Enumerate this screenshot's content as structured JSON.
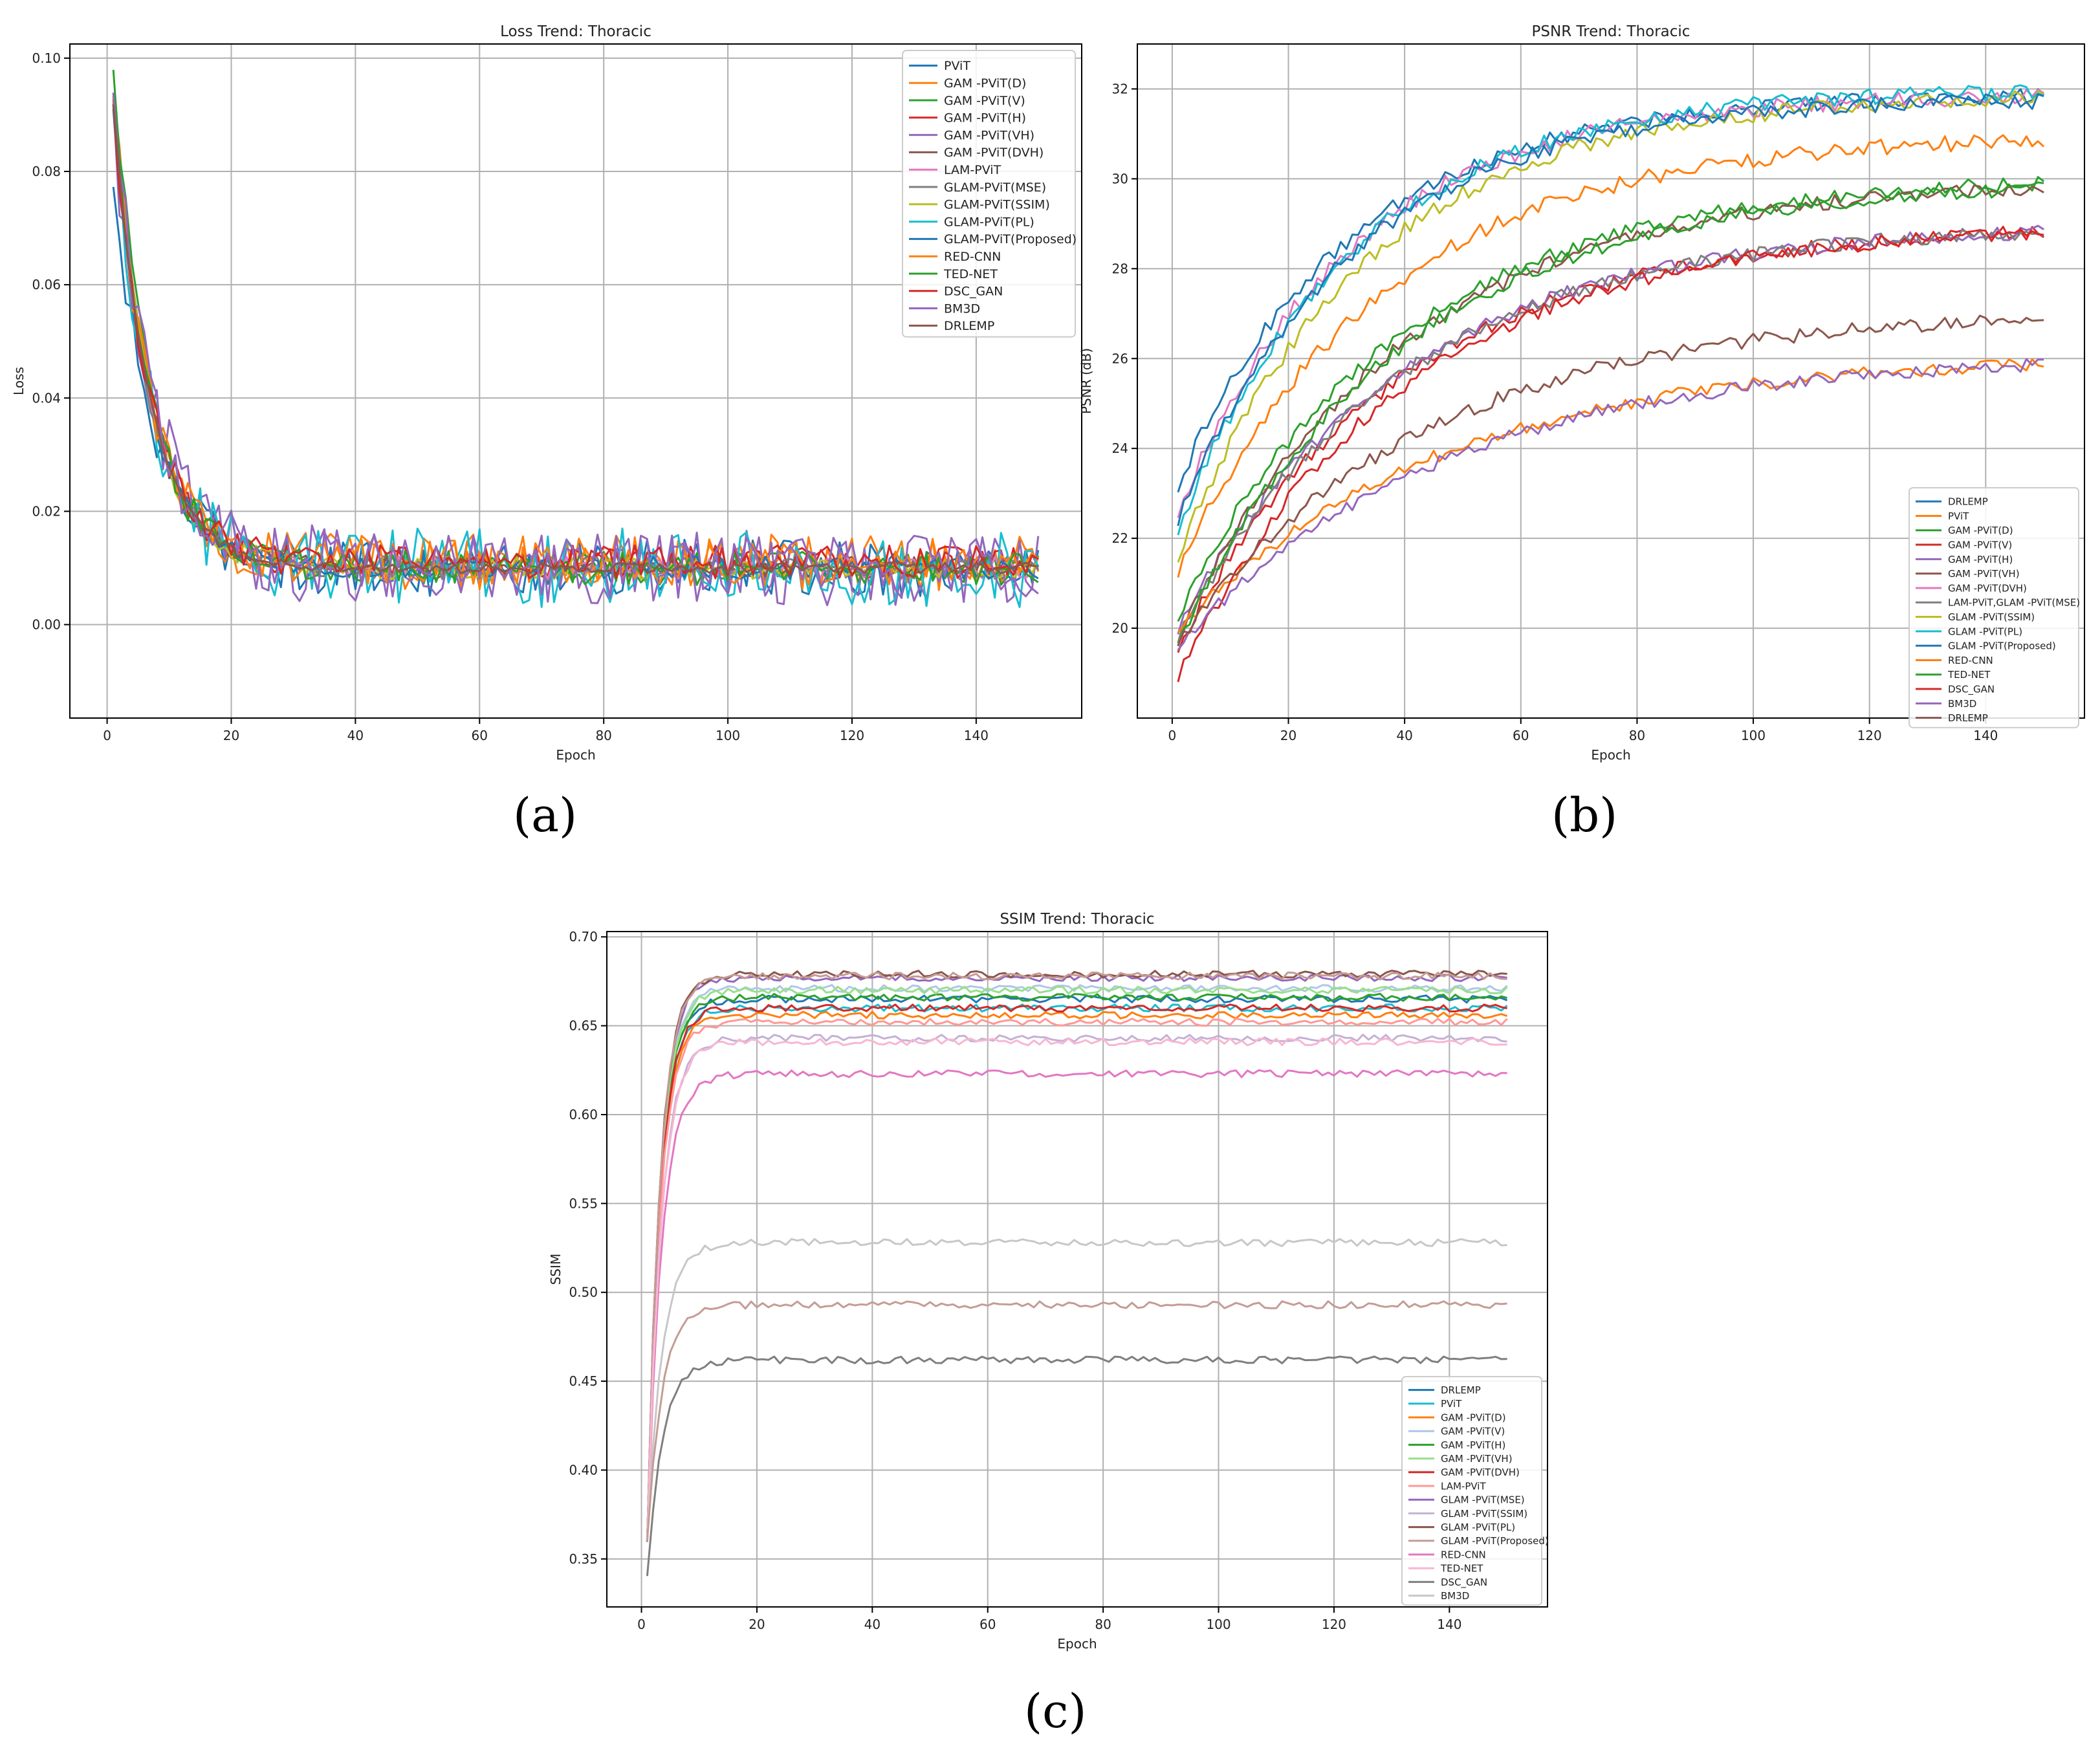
{
  "colors": {
    "c0": "#1f77b4",
    "c1": "#ff7f0e",
    "c2": "#2ca02c",
    "c3": "#d62728",
    "c4": "#9467bd",
    "c5": "#8c564b",
    "c6": "#e377c2",
    "c7": "#7f7f7f",
    "c8": "#bcbd22",
    "c9": "#17becf"
  },
  "panel_labels": [
    "(a)",
    "(b)",
    "(c)"
  ],
  "chart_data": [
    {
      "type": "line",
      "title": "Loss Trend: Thoracic",
      "xlabel": "Epoch",
      "ylabel": "Loss",
      "xlim": [
        -6,
        157
      ],
      "ylim": [
        -0.0165,
        0.1025
      ],
      "xticks": [
        0,
        20,
        40,
        60,
        80,
        100,
        120,
        140
      ],
      "yticks": [
        0.0,
        0.02,
        0.04,
        0.06,
        0.08,
        0.1
      ],
      "ytick_labels": [
        "0.00",
        "0.02",
        "0.04",
        "0.06",
        "0.08",
        "0.10"
      ],
      "grid": true,
      "legend_position": "top-right",
      "x": "epochs 1-150",
      "series": [
        {
          "name": "PViT",
          "color": "c0",
          "start": 0.076,
          "final": 0.01,
          "tau": 6.5,
          "noise": 0.005
        },
        {
          "name": "GAM -PViT(D)",
          "color": "c1",
          "start": 0.092,
          "final": 0.011,
          "tau": 6.0,
          "noise": 0.005
        },
        {
          "name": "GAM -PViT(V)",
          "color": "c2",
          "start": 0.097,
          "final": 0.01,
          "tau": 6.0,
          "noise": 0.003
        },
        {
          "name": "GAM -PViT(H)",
          "color": "c3",
          "start": 0.091,
          "final": 0.011,
          "tau": 6.0,
          "noise": 0.003
        },
        {
          "name": "GAM -PViT(VH)",
          "color": "c4",
          "start": 0.09,
          "final": 0.01,
          "tau": 6.5,
          "noise": 0.007
        },
        {
          "name": "GAM -PViT(DVH)",
          "color": "c5",
          "start": 0.092,
          "final": 0.01,
          "tau": 6.0,
          "noise": 0.002
        },
        {
          "name": "LAM-PViT",
          "color": "c6",
          "start": 0.091,
          "final": 0.01,
          "tau": 6.0,
          "noise": 0.002
        },
        {
          "name": "GLAM-PViT(MSE)",
          "color": "c7",
          "start": 0.09,
          "final": 0.01,
          "tau": 6.0,
          "noise": 0.002
        },
        {
          "name": "GLAM-PViT(SSIM)",
          "color": "c8",
          "start": 0.091,
          "final": 0.01,
          "tau": 6.0,
          "noise": 0.002
        },
        {
          "name": "GLAM-PViT(PL)",
          "color": "c9",
          "start": 0.088,
          "final": 0.01,
          "tau": 6.0,
          "noise": 0.007
        },
        {
          "name": "GLAM-PViT(Proposed)",
          "color": "c0",
          "start": 0.09,
          "final": 0.01,
          "tau": 6.0,
          "noise": 0.002
        },
        {
          "name": "RED-CNN",
          "color": "c1",
          "start": 0.091,
          "final": 0.011,
          "tau": 6.0,
          "noise": 0.004
        },
        {
          "name": "TED-NET",
          "color": "c2",
          "start": 0.092,
          "final": 0.01,
          "tau": 6.0,
          "noise": 0.003
        },
        {
          "name": "DSC_GAN",
          "color": "c3",
          "start": 0.09,
          "final": 0.011,
          "tau": 6.0,
          "noise": 0.003
        },
        {
          "name": "BM3D",
          "color": "c4",
          "start": 0.09,
          "final": 0.01,
          "tau": 6.5,
          "noise": 0.006
        },
        {
          "name": "DRLEMP",
          "color": "c5",
          "start": 0.091,
          "final": 0.01,
          "tau": 6.0,
          "noise": 0.001
        }
      ]
    },
    {
      "type": "line",
      "title": "PSNR Trend: Thoracic",
      "xlabel": "Epoch",
      "ylabel": "PSNR (dB)",
      "xlim": [
        -6,
        157
      ],
      "ylim": [
        18.0,
        33.0
      ],
      "xticks": [
        0,
        20,
        40,
        60,
        80,
        100,
        120,
        140
      ],
      "yticks": [
        20,
        22,
        24,
        26,
        28,
        30,
        32
      ],
      "ytick_labels": [
        "20",
        "22",
        "24",
        "26",
        "28",
        "30",
        "32"
      ],
      "grid": true,
      "legend_position": "bottom-right",
      "x": "epochs 1-150",
      "series": [
        {
          "name": "DRLEMP",
          "color": "c0",
          "start": 23.2,
          "final": 31.9,
          "tau": 30,
          "noise": 0.18
        },
        {
          "name": "PViT",
          "color": "c1",
          "start": 21.3,
          "final": 31.0,
          "tau": 35,
          "noise": 0.18
        },
        {
          "name": "GAM -PViT(D)",
          "color": "c2",
          "start": 20.3,
          "final": 30.1,
          "tau": 38,
          "noise": 0.16
        },
        {
          "name": "GAM -PViT(V)",
          "color": "c3",
          "start": 19.6,
          "final": 29.0,
          "tau": 38,
          "noise": 0.16
        },
        {
          "name": "GAM -PViT(H)",
          "color": "c4",
          "start": 20.0,
          "final": 29.0,
          "tau": 38,
          "noise": 0.16
        },
        {
          "name": "GAM -PViT(VH)",
          "color": "c5",
          "start": 19.8,
          "final": 30.0,
          "tau": 38,
          "noise": 0.16
        },
        {
          "name": "GAM -PViT(DVH)",
          "color": "c6",
          "start": 22.6,
          "final": 31.9,
          "tau": 30,
          "noise": 0.18
        },
        {
          "name": "LAM-PViT,GLAM -PViT(MSE)",
          "color": "c7",
          "start": 19.8,
          "final": 29.0,
          "tau": 38,
          "noise": 0.16
        },
        {
          "name": "GLAM -PViT(SSIM)",
          "color": "c8",
          "start": 21.6,
          "final": 31.9,
          "tau": 32,
          "noise": 0.18
        },
        {
          "name": "GLAM -PViT(PL)",
          "color": "c9",
          "start": 22.2,
          "final": 32.0,
          "tau": 30,
          "noise": 0.18
        },
        {
          "name": "GLAM -PViT(Proposed)",
          "color": "c0",
          "start": 22.4,
          "final": 31.8,
          "tau": 30,
          "noise": 0.18
        },
        {
          "name": "RED-CNN",
          "color": "c1",
          "start": 20.0,
          "final": 26.1,
          "tau": 45,
          "noise": 0.15
        },
        {
          "name": "TED-NET",
          "color": "c2",
          "start": 19.7,
          "final": 30.0,
          "tau": 38,
          "noise": 0.16
        },
        {
          "name": "DSC_GAN",
          "color": "c3",
          "start": 18.9,
          "final": 29.0,
          "tau": 38,
          "noise": 0.16
        },
        {
          "name": "BM3D",
          "color": "c4",
          "start": 19.6,
          "final": 26.1,
          "tau": 45,
          "noise": 0.15
        },
        {
          "name": "DRLEMP",
          "color": "c5",
          "start": 19.7,
          "final": 27.1,
          "tau": 42,
          "noise": 0.16
        }
      ]
    },
    {
      "type": "line",
      "title": "SSIM Trend: Thoracic",
      "xlabel": "Epoch",
      "ylabel": "SSIM",
      "xlim": [
        -6,
        157
      ],
      "ylim": [
        0.323,
        0.703
      ],
      "xticks": [
        0,
        20,
        40,
        60,
        80,
        100,
        120,
        140
      ],
      "yticks": [
        0.35,
        0.4,
        0.45,
        0.5,
        0.55,
        0.6,
        0.65,
        0.7
      ],
      "ytick_labels": [
        "0.35",
        "0.40",
        "0.45",
        "0.50",
        "0.55",
        "0.60",
        "0.65",
        "0.70"
      ],
      "grid": true,
      "legend_position": "bottom-right",
      "x": "epochs 1-150",
      "series": [
        {
          "name": "DRLEMP",
          "color": "c0",
          "start": 0.36,
          "final": 0.665,
          "tau": 2.2,
          "noise": 0.002
        },
        {
          "name": "PViT",
          "color": "c9",
          "start": 0.36,
          "final": 0.66,
          "tau": 2.2,
          "noise": 0.002
        },
        {
          "name": "GAM  -PViT(D)",
          "color": "c1",
          "start": 0.36,
          "final": 0.656,
          "tau": 2.2,
          "noise": 0.002
        },
        {
          "name": "GAM  -PViT(V)",
          "color": "#aec7e8",
          "start": 0.36,
          "final": 0.671,
          "tau": 2.2,
          "noise": 0.002
        },
        {
          "name": "GAM  -PViT(H)",
          "color": "c2",
          "start": 0.36,
          "final": 0.666,
          "tau": 2.2,
          "noise": 0.002
        },
        {
          "name": "GAM  -PViT(VH)",
          "color": "#98df8a",
          "start": 0.36,
          "final": 0.67,
          "tau": 2.2,
          "noise": 0.002
        },
        {
          "name": "GAM  -PViT(DVH)",
          "color": "c3",
          "start": 0.36,
          "final": 0.66,
          "tau": 2.2,
          "noise": 0.002
        },
        {
          "name": "LAM-PViT",
          "color": "#ff9896",
          "start": 0.36,
          "final": 0.652,
          "tau": 2.2,
          "noise": 0.002
        },
        {
          "name": "GLAM -PViT(MSE)",
          "color": "c4",
          "start": 0.36,
          "final": 0.677,
          "tau": 2.2,
          "noise": 0.002
        },
        {
          "name": "GLAM -PViT(SSIM)",
          "color": "#c5b0d5",
          "start": 0.36,
          "final": 0.643,
          "tau": 2.4,
          "noise": 0.002
        },
        {
          "name": "GLAM -PViT(PL)",
          "color": "c5",
          "start": 0.36,
          "final": 0.679,
          "tau": 2.2,
          "noise": 0.002
        },
        {
          "name": "GLAM -PViT(Proposed)",
          "color": "#c49c94",
          "start": 0.36,
          "final": 0.678,
          "tau": 2.2,
          "noise": 0.002
        },
        {
          "name": "RED-CNN",
          "color": "c6",
          "start": 0.36,
          "final": 0.623,
          "tau": 2.5,
          "noise": 0.002
        },
        {
          "name": "TED-NET",
          "color": "#f7b6d2",
          "start": 0.36,
          "final": 0.641,
          "tau": 2.4,
          "noise": 0.002
        },
        {
          "name": "DSC_GAN",
          "color": "c7",
          "start": 0.34,
          "final": 0.462,
          "tau": 2.6,
          "noise": 0.002
        },
        {
          "name": "BM3D",
          "color": "#c7c7c7",
          "start": 0.36,
          "final": 0.528,
          "tau": 2.6,
          "noise": 0.002
        },
        {
          "name": "GLAM -PViT(Proposed)",
          "color": "#c49c94",
          "start": 0.36,
          "final": 0.493,
          "tau": 2.6,
          "noise": 0.002,
          "legend": false
        }
      ]
    }
  ]
}
